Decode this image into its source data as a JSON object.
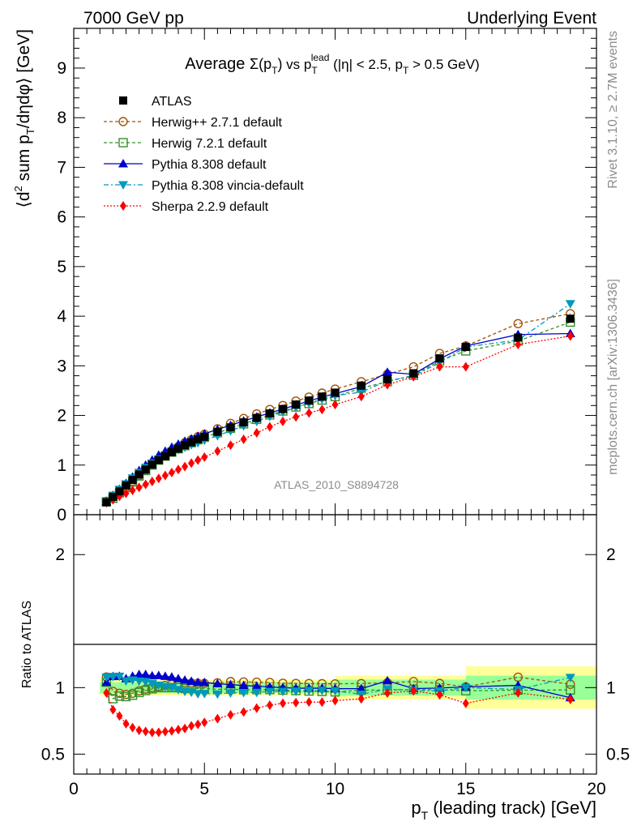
{
  "header": {
    "left": "7000 GeV pp",
    "right": "Underlying Event"
  },
  "side_labels": {
    "rivet": "Rivet 3.1.10, ≥ 2.7M events",
    "mcplots": "mcplots.cern.ch [arXiv:1306.3436]"
  },
  "watermark": "ATLAS_2010_S8894728",
  "chart_data": {
    "type": "line",
    "title_parts": {
      "prefix": "Average ",
      "sigma": "Σ(p",
      "T": "T",
      "close": ")",
      "vs": " vs p",
      "lead": "lead",
      "tail": " (|η| < 2.5, p",
      "tail2": " > 0.5 GeV)"
    },
    "ylabel_parts": {
      "open": "⟨d",
      "sup2": "2",
      "mid": " sum p",
      "T": "T",
      "end": "/dηdφ⟩ [GeV]"
    },
    "xlabel_parts": {
      "p": "p",
      "T": "T",
      "rest": " (leading track) [GeV]"
    },
    "ratio_ylabel": "Ratio to ATLAS",
    "xlim": [
      0,
      20
    ],
    "ylim": [
      0,
      9.8
    ],
    "ratio_ylim": [
      0.35,
      2.3
    ],
    "x_ticks": [
      "0",
      "5",
      "10",
      "15",
      "20"
    ],
    "y_ticks": [
      "0",
      "1",
      "2",
      "3",
      "4",
      "5",
      "6",
      "7",
      "8",
      "9"
    ],
    "ratio_ticks": [
      "0.5",
      "1",
      "2"
    ],
    "legend_position": "top-left",
    "x": [
      1.25,
      1.5,
      1.75,
      2.0,
      2.25,
      2.5,
      2.75,
      3.0,
      3.25,
      3.5,
      3.75,
      4.0,
      4.25,
      4.5,
      4.75,
      5.0,
      5.5,
      6.0,
      6.5,
      7.0,
      7.5,
      8.0,
      8.5,
      9.0,
      9.5,
      10.0,
      11.0,
      12.0,
      13.0,
      14.0,
      15.0,
      17.0,
      19.0
    ],
    "series": [
      {
        "name": "ATLAS",
        "color": "#000000",
        "marker": "square-filled",
        "dash": "none",
        "values": [
          0.25,
          0.36,
          0.47,
          0.59,
          0.7,
          0.81,
          0.91,
          1.01,
          1.1,
          1.18,
          1.26,
          1.33,
          1.4,
          1.46,
          1.52,
          1.57,
          1.67,
          1.76,
          1.86,
          1.95,
          2.04,
          2.13,
          2.22,
          2.3,
          2.38,
          2.46,
          2.6,
          2.73,
          2.85,
          3.15,
          3.38,
          3.57,
          3.95
        ]
      },
      {
        "name": "Herwig++ 2.7.1 default",
        "color": "#a0520a",
        "marker": "circle-open",
        "dash": "4,3",
        "values": [
          0.27,
          0.35,
          0.45,
          0.56,
          0.67,
          0.79,
          0.9,
          1.01,
          1.11,
          1.2,
          1.29,
          1.37,
          1.45,
          1.51,
          1.57,
          1.62,
          1.73,
          1.84,
          1.94,
          2.03,
          2.12,
          2.2,
          2.29,
          2.37,
          2.45,
          2.53,
          2.68,
          2.83,
          2.98,
          3.25,
          3.4,
          3.85,
          4.05
        ]
      },
      {
        "name": "Herwig 7.2.1 default",
        "color": "#35902a",
        "marker": "square-open",
        "dash": "4,3",
        "values": [
          0.26,
          0.33,
          0.44,
          0.55,
          0.66,
          0.78,
          0.89,
          1.0,
          1.1,
          1.18,
          1.26,
          1.33,
          1.39,
          1.45,
          1.51,
          1.56,
          1.65,
          1.74,
          1.83,
          1.92,
          2.01,
          2.09,
          2.17,
          2.24,
          2.31,
          2.38,
          2.55,
          2.68,
          2.81,
          3.1,
          3.3,
          3.5,
          3.88
        ]
      },
      {
        "name": "Pythia 8.308 default",
        "color": "#0000cc",
        "marker": "triangle-up",
        "dash": "none",
        "values": [
          0.26,
          0.39,
          0.51,
          0.63,
          0.76,
          0.89,
          1.0,
          1.1,
          1.2,
          1.28,
          1.36,
          1.42,
          1.48,
          1.53,
          1.58,
          1.63,
          1.72,
          1.8,
          1.89,
          1.97,
          2.05,
          2.13,
          2.21,
          2.29,
          2.37,
          2.44,
          2.58,
          2.87,
          2.83,
          3.14,
          3.4,
          3.63,
          3.65
        ]
      },
      {
        "name": "Pythia 8.308 vincia-default",
        "color": "#0099bb",
        "marker": "triangle-down",
        "dash": "6,3,2,3",
        "values": [
          0.27,
          0.39,
          0.51,
          0.62,
          0.74,
          0.85,
          0.95,
          1.04,
          1.12,
          1.19,
          1.26,
          1.31,
          1.36,
          1.41,
          1.45,
          1.5,
          1.59,
          1.69,
          1.79,
          1.88,
          1.98,
          2.07,
          2.16,
          2.25,
          2.33,
          2.4,
          2.47,
          2.7,
          2.79,
          3.07,
          3.38,
          3.52,
          4.25
        ]
      },
      {
        "name": "Sherpa 2.2.9 default",
        "color": "#ff0000",
        "marker": "diamond",
        "dash": "2,2",
        "values": [
          0.24,
          0.3,
          0.37,
          0.43,
          0.49,
          0.55,
          0.61,
          0.67,
          0.73,
          0.79,
          0.85,
          0.91,
          0.97,
          1.04,
          1.1,
          1.16,
          1.28,
          1.4,
          1.52,
          1.65,
          1.77,
          1.88,
          1.97,
          2.05,
          2.12,
          2.22,
          2.38,
          2.62,
          2.78,
          2.98,
          2.98,
          3.43,
          3.6
        ]
      }
    ],
    "uncertainty_bands": [
      {
        "from": 1.0,
        "to": 10.0,
        "stat": 0.04,
        "tot": 0.06
      },
      {
        "from": 10.0,
        "to": 15.0,
        "stat": 0.06,
        "tot": 0.09
      },
      {
        "from": 15.0,
        "to": 20.0,
        "stat": 0.09,
        "tot": 0.16
      }
    ]
  }
}
